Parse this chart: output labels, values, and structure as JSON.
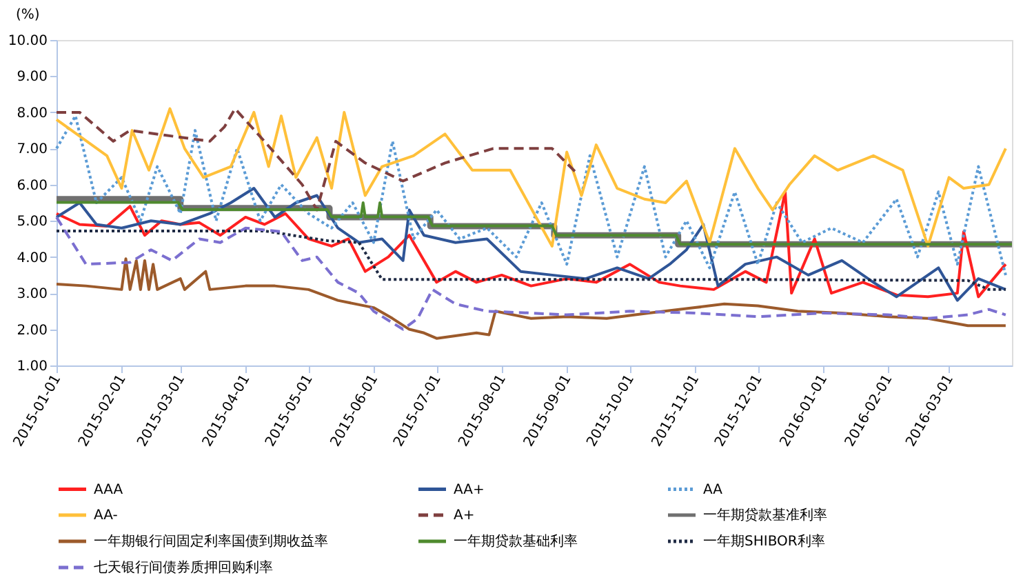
{
  "chart_data": {
    "type": "line",
    "ylabel": "(%)",
    "xlim": [
      "2015-01-01",
      "2016-03-31"
    ],
    "ylim": [
      1,
      10
    ],
    "xticks": [
      "2015-01-01",
      "2015-02-01",
      "2015-03-01",
      "2015-04-01",
      "2015-05-01",
      "2015-06-01",
      "2015-07-01",
      "2015-08-01",
      "2015-09-01",
      "2015-10-01",
      "2015-11-01",
      "2015-12-01",
      "2016-01-01",
      "2016-02-01",
      "2016-03-01"
    ],
    "yticks": [
      {
        "value": 1,
        "label": "1.00"
      },
      {
        "value": 2,
        "label": "2.00"
      },
      {
        "value": 3,
        "label": "3.00"
      },
      {
        "value": 4,
        "label": "4.00"
      },
      {
        "value": 5,
        "label": "5.00"
      },
      {
        "value": 6,
        "label": "6.00"
      },
      {
        "value": 7,
        "label": "7.00"
      },
      {
        "value": 8,
        "label": "8.00"
      },
      {
        "value": 9,
        "label": "9.00"
      },
      {
        "value": 10,
        "label": "10.00"
      }
    ],
    "grid": false,
    "legend": "bottom",
    "marker": "none",
    "series": [
      {
        "name": "AAA",
        "color": "#ff2020",
        "line_style": "solid",
        "x": [
          "2015-01-01",
          "2015-01-12",
          "2015-01-25",
          "2015-02-05",
          "2015-02-12",
          "2015-02-20",
          "2015-03-01",
          "2015-03-10",
          "2015-03-20",
          "2015-04-01",
          "2015-04-10",
          "2015-04-20",
          "2015-05-01",
          "2015-05-12",
          "2015-05-20",
          "2015-05-28",
          "2015-06-08",
          "2015-06-18",
          "2015-07-01",
          "2015-07-10",
          "2015-07-20",
          "2015-08-01",
          "2015-08-15",
          "2015-09-01",
          "2015-09-15",
          "2015-10-01",
          "2015-10-15",
          "2015-10-25",
          "2015-11-10",
          "2015-11-25",
          "2015-12-05",
          "2015-12-14",
          "2015-12-17",
          "2015-12-28",
          "2016-01-05",
          "2016-01-20",
          "2016-02-05",
          "2016-02-20",
          "2016-03-05",
          "2016-03-08",
          "2016-03-15",
          "2016-03-28"
        ],
        "values": [
          5.2,
          4.9,
          4.85,
          5.4,
          4.6,
          5.0,
          4.9,
          4.95,
          4.6,
          5.1,
          4.9,
          5.2,
          4.5,
          4.3,
          4.5,
          3.6,
          4.0,
          4.6,
          3.3,
          3.6,
          3.3,
          3.5,
          3.2,
          3.4,
          3.3,
          3.8,
          3.3,
          3.2,
          3.1,
          3.6,
          3.3,
          5.8,
          3.0,
          4.5,
          3.0,
          3.3,
          2.95,
          2.9,
          3.0,
          4.7,
          2.9,
          3.8
        ]
      },
      {
        "name": "AA+",
        "color": "#2f5597",
        "line_style": "solid",
        "x": [
          "2015-01-01",
          "2015-01-12",
          "2015-01-20",
          "2015-02-01",
          "2015-02-15",
          "2015-03-01",
          "2015-03-15",
          "2015-03-25",
          "2015-04-05",
          "2015-04-15",
          "2015-04-25",
          "2015-05-05",
          "2015-05-15",
          "2015-05-25",
          "2015-06-05",
          "2015-06-15",
          "2015-06-18",
          "2015-06-25",
          "2015-07-10",
          "2015-07-25",
          "2015-08-10",
          "2015-08-25",
          "2015-09-10",
          "2015-09-25",
          "2015-10-10",
          "2015-10-20",
          "2015-10-28",
          "2015-11-05",
          "2015-11-12",
          "2015-11-25",
          "2015-12-10",
          "2015-12-25",
          "2016-01-10",
          "2016-01-25",
          "2016-02-05",
          "2016-02-25",
          "2016-03-05",
          "2016-03-15",
          "2016-03-28"
        ],
        "values": [
          5.1,
          5.5,
          4.9,
          4.8,
          5.0,
          4.9,
          5.2,
          5.5,
          5.9,
          5.1,
          5.5,
          5.7,
          4.8,
          4.4,
          4.5,
          3.9,
          5.3,
          4.6,
          4.4,
          4.5,
          3.6,
          3.5,
          3.4,
          3.7,
          3.4,
          3.8,
          4.2,
          4.9,
          3.2,
          3.8,
          4.0,
          3.5,
          3.9,
          3.3,
          2.9,
          3.7,
          2.8,
          3.4,
          3.1
        ]
      },
      {
        "name": "AA",
        "color": "#5b9bd5",
        "line_style": "dotted",
        "x": [
          "2015-01-01",
          "2015-01-10",
          "2015-01-20",
          "2015-02-01",
          "2015-02-10",
          "2015-02-18",
          "2015-03-01",
          "2015-03-08",
          "2015-03-18",
          "2015-03-28",
          "2015-04-08",
          "2015-04-18",
          "2015-05-01",
          "2015-05-12",
          "2015-05-22",
          "2015-06-01",
          "2015-06-10",
          "2015-06-20",
          "2015-07-01",
          "2015-07-12",
          "2015-07-25",
          "2015-08-08",
          "2015-08-20",
          "2015-09-01",
          "2015-09-12",
          "2015-09-25",
          "2015-10-08",
          "2015-10-18",
          "2015-10-28",
          "2015-11-08",
          "2015-11-20",
          "2015-12-01",
          "2015-12-10",
          "2015-12-22",
          "2016-01-05",
          "2016-01-20",
          "2016-02-05",
          "2016-02-15",
          "2016-02-25",
          "2016-03-05",
          "2016-03-15",
          "2016-03-28"
        ],
        "values": [
          7.0,
          7.9,
          5.5,
          6.2,
          5.0,
          6.5,
          5.2,
          7.5,
          5.0,
          7.0,
          5.0,
          6.0,
          5.2,
          4.8,
          5.5,
          4.4,
          7.2,
          4.5,
          5.3,
          4.5,
          4.8,
          4.0,
          5.5,
          3.8,
          6.8,
          4.0,
          6.5,
          4.0,
          5.0,
          3.7,
          5.8,
          3.8,
          5.5,
          4.4,
          4.8,
          4.4,
          5.6,
          4.0,
          5.8,
          3.8,
          6.5,
          3.5
        ]
      },
      {
        "name": "AA-",
        "color": "#ffc03a",
        "line_style": "solid",
        "x": [
          "2015-01-01",
          "2015-01-25",
          "2015-02-01",
          "2015-02-06",
          "2015-02-14",
          "2015-02-24",
          "2015-03-03",
          "2015-03-12",
          "2015-03-25",
          "2015-04-05",
          "2015-04-12",
          "2015-04-18",
          "2015-04-25",
          "2015-05-05",
          "2015-05-12",
          "2015-05-18",
          "2015-05-28",
          "2015-06-05",
          "2015-06-20",
          "2015-07-05",
          "2015-07-18",
          "2015-08-05",
          "2015-08-25",
          "2015-09-01",
          "2015-09-08",
          "2015-09-15",
          "2015-09-25",
          "2015-10-08",
          "2015-10-18",
          "2015-10-28",
          "2015-11-08",
          "2015-11-20",
          "2015-12-01",
          "2015-12-08",
          "2015-12-16",
          "2015-12-28",
          "2016-01-08",
          "2016-01-25",
          "2016-02-08",
          "2016-02-20",
          "2016-03-01",
          "2016-03-08",
          "2016-03-20",
          "2016-03-28"
        ],
        "values": [
          7.8,
          6.8,
          5.9,
          7.5,
          6.4,
          8.1,
          7.0,
          6.2,
          6.5,
          8.0,
          6.5,
          7.9,
          6.2,
          7.3,
          5.9,
          8.0,
          5.7,
          6.5,
          6.8,
          7.4,
          6.4,
          6.4,
          4.3,
          6.9,
          5.7,
          7.1,
          5.9,
          5.6,
          5.5,
          6.1,
          4.4,
          7.0,
          5.9,
          5.3,
          6.0,
          6.8,
          6.4,
          6.8,
          6.4,
          4.3,
          6.2,
          5.9,
          6.0,
          7.0
        ]
      },
      {
        "name": "A+",
        "color": "#7f3f3f",
        "line_style": "dashed",
        "x": [
          "2015-01-01",
          "2015-01-12",
          "2015-01-28",
          "2015-02-05",
          "2015-03-15",
          "2015-03-22",
          "2015-03-27",
          "2015-04-10",
          "2015-04-28",
          "2015-05-05",
          "2015-05-14",
          "2015-05-28",
          "2015-06-15",
          "2015-07-05",
          "2015-07-28",
          "2015-08-25",
          "2015-09-06"
        ],
        "values": [
          8.0,
          8.0,
          7.2,
          7.5,
          7.2,
          7.6,
          8.1,
          7.2,
          6.0,
          5.3,
          7.2,
          6.6,
          6.1,
          6.6,
          7.0,
          7.0,
          6.3
        ]
      },
      {
        "name": "一年期贷款基准利率",
        "type": "step",
        "color": "#707070",
        "line_style": "solid",
        "x": [
          "2015-01-01",
          "2015-03-01",
          "2015-05-11",
          "2015-06-28",
          "2015-08-26",
          "2015-10-24",
          "2016-03-31"
        ],
        "values": [
          5.6,
          5.35,
          5.1,
          4.85,
          4.6,
          4.35,
          4.35
        ]
      },
      {
        "name": "一年期银行间固定利率国债到期收益率",
        "color": "#9c5a2b",
        "line_style": "solid",
        "x": [
          "2015-01-01",
          "2015-01-15",
          "2015-02-01",
          "2015-02-03",
          "2015-02-05",
          "2015-02-08",
          "2015-02-10",
          "2015-02-12",
          "2015-02-14",
          "2015-02-16",
          "2015-02-18",
          "2015-03-01",
          "2015-03-03",
          "2015-03-13",
          "2015-03-15",
          "2015-04-01",
          "2015-04-15",
          "2015-05-01",
          "2015-05-15",
          "2015-06-01",
          "2015-06-10",
          "2015-06-18",
          "2015-06-25",
          "2015-07-01",
          "2015-07-20",
          "2015-07-26",
          "2015-07-29",
          "2015-08-15",
          "2015-09-01",
          "2015-09-20",
          "2015-10-10",
          "2015-11-01",
          "2015-11-15",
          "2015-12-01",
          "2015-12-20",
          "2016-01-10",
          "2016-02-01",
          "2016-02-20",
          "2016-03-10",
          "2016-03-28"
        ],
        "values": [
          3.25,
          3.2,
          3.1,
          3.95,
          3.1,
          3.9,
          3.1,
          3.9,
          3.1,
          3.8,
          3.1,
          3.4,
          3.1,
          3.6,
          3.1,
          3.2,
          3.2,
          3.1,
          2.8,
          2.6,
          2.3,
          2.0,
          1.9,
          1.75,
          1.9,
          1.85,
          2.5,
          2.3,
          2.35,
          2.3,
          2.45,
          2.6,
          2.7,
          2.65,
          2.5,
          2.45,
          2.35,
          2.3,
          2.1,
          2.1
        ]
      },
      {
        "name": "一年期贷款基础利率",
        "color": "#4f8a2e",
        "line_style": "solid",
        "x": [
          "2015-01-01",
          "2015-02-28",
          "2015-03-02",
          "2015-05-10",
          "2015-05-12",
          "2015-05-26",
          "2015-05-27",
          "2015-05-28",
          "2015-06-03",
          "2015-06-04",
          "2015-06-05",
          "2015-06-27",
          "2015-06-29",
          "2015-08-25",
          "2015-08-27",
          "2015-10-23",
          "2015-10-25",
          "2016-03-31"
        ],
        "values": [
          5.51,
          5.51,
          5.31,
          5.31,
          5.11,
          5.11,
          5.5,
          5.11,
          5.11,
          5.5,
          5.11,
          5.11,
          4.86,
          4.86,
          4.6,
          4.6,
          4.35,
          4.35
        ]
      },
      {
        "name": "一年期SHIBOR利率",
        "color": "#1f2a44",
        "line_style": "dotted",
        "x": [
          "2015-01-01",
          "2015-04-10",
          "2015-05-10",
          "2015-05-25",
          "2015-06-05",
          "2015-11-20",
          "2016-03-10",
          "2016-03-20",
          "2016-03-28"
        ],
        "values": [
          4.72,
          4.72,
          4.45,
          4.4,
          3.38,
          3.38,
          3.35,
          3.1,
          3.1
        ]
      },
      {
        "name": "七天银行间债券质押回购利率",
        "color": "#7b6fd0",
        "line_style": "dashed",
        "x": [
          "2015-01-01",
          "2015-01-15",
          "2015-02-05",
          "2015-02-15",
          "2015-02-25",
          "2015-03-10",
          "2015-03-20",
          "2015-04-01",
          "2015-04-18",
          "2015-04-28",
          "2015-05-05",
          "2015-05-15",
          "2015-05-25",
          "2015-06-01",
          "2015-06-15",
          "2015-06-22",
          "2015-06-29",
          "2015-07-10",
          "2015-07-25",
          "2015-08-15",
          "2015-09-01",
          "2015-10-01",
          "2015-11-01",
          "2015-12-01",
          "2016-01-01",
          "2016-02-01",
          "2016-02-20",
          "2016-03-10",
          "2016-03-20",
          "2016-03-28"
        ],
        "values": [
          5.1,
          3.8,
          3.85,
          4.2,
          3.9,
          4.5,
          4.4,
          4.8,
          4.7,
          3.9,
          4.0,
          3.3,
          3.0,
          2.5,
          2.0,
          2.3,
          3.1,
          2.7,
          2.5,
          2.45,
          2.4,
          2.5,
          2.45,
          2.35,
          2.45,
          2.4,
          2.3,
          2.4,
          2.55,
          2.4
        ]
      }
    ]
  }
}
